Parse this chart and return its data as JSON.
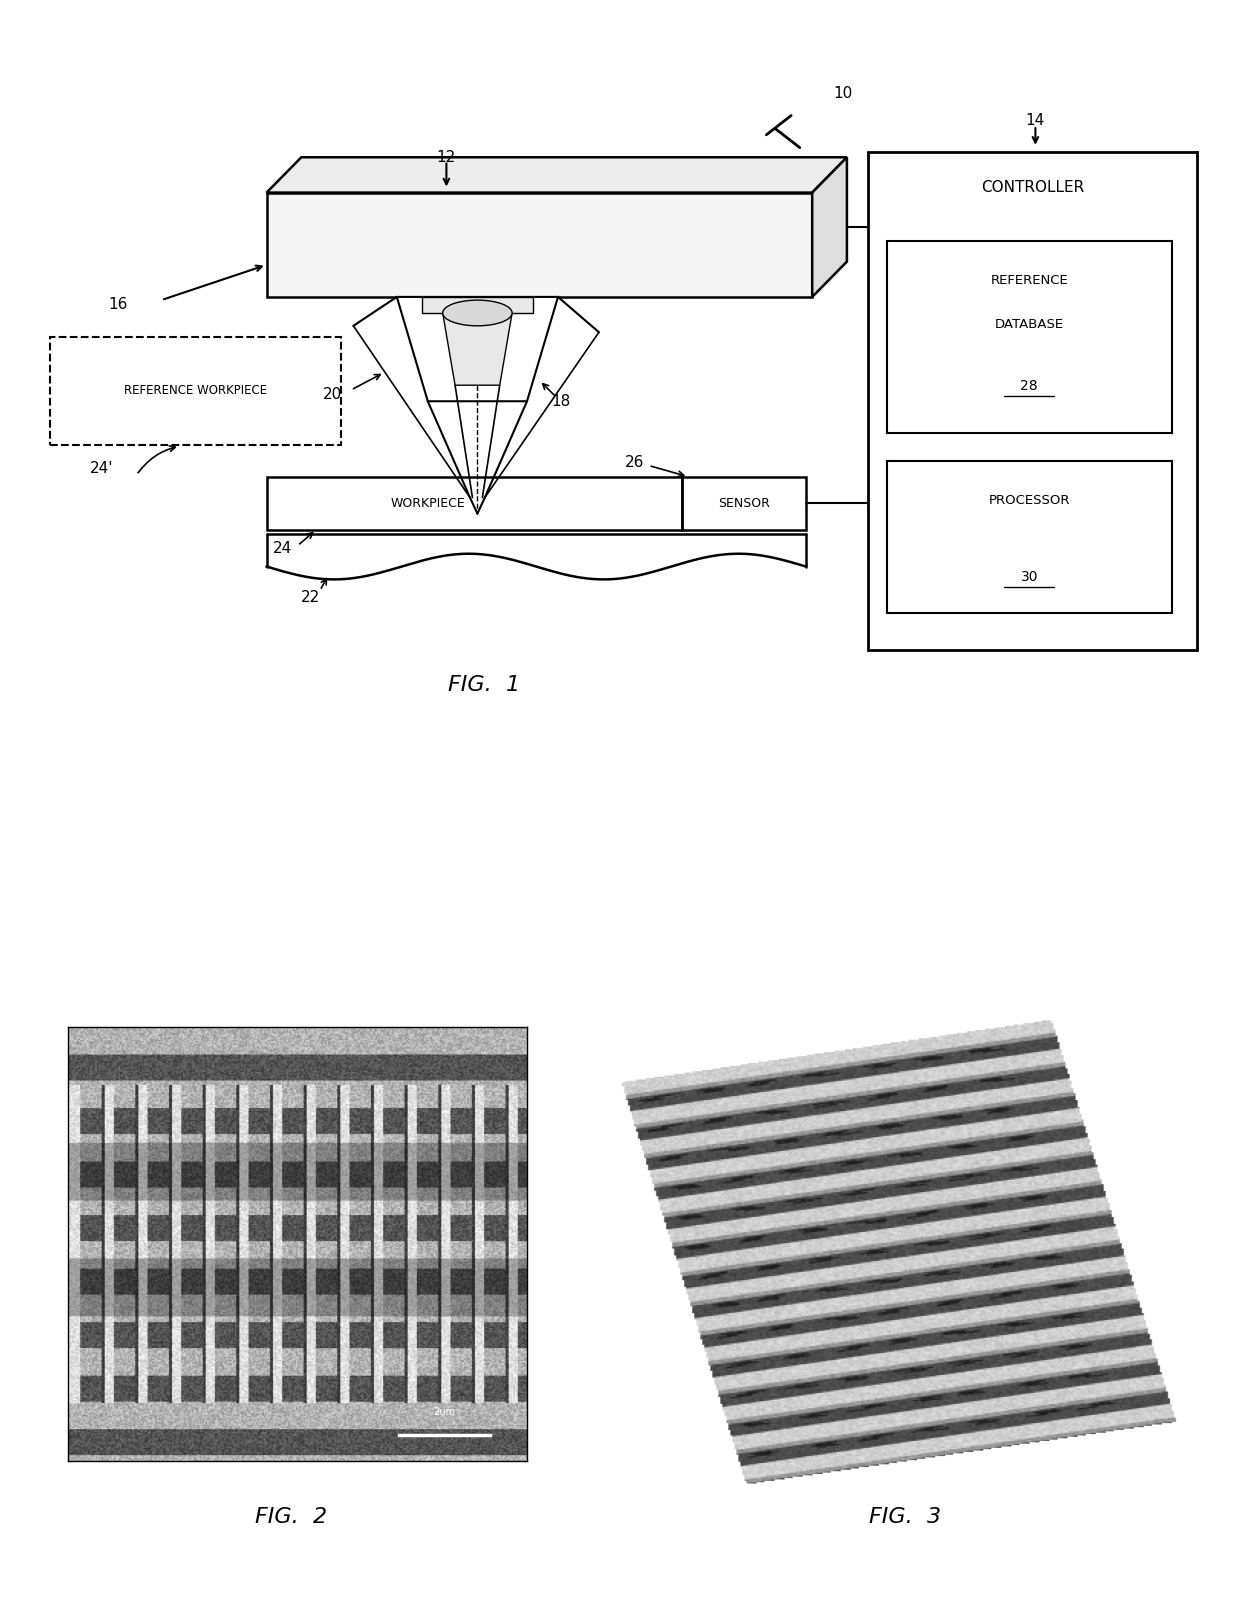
{
  "bg_color": "#ffffff",
  "fig_width": 12.4,
  "fig_height": 16.05,
  "fig1_caption": "FIG.  1",
  "fig2_caption": "FIG.  2",
  "fig3_caption": "FIG.  3"
}
